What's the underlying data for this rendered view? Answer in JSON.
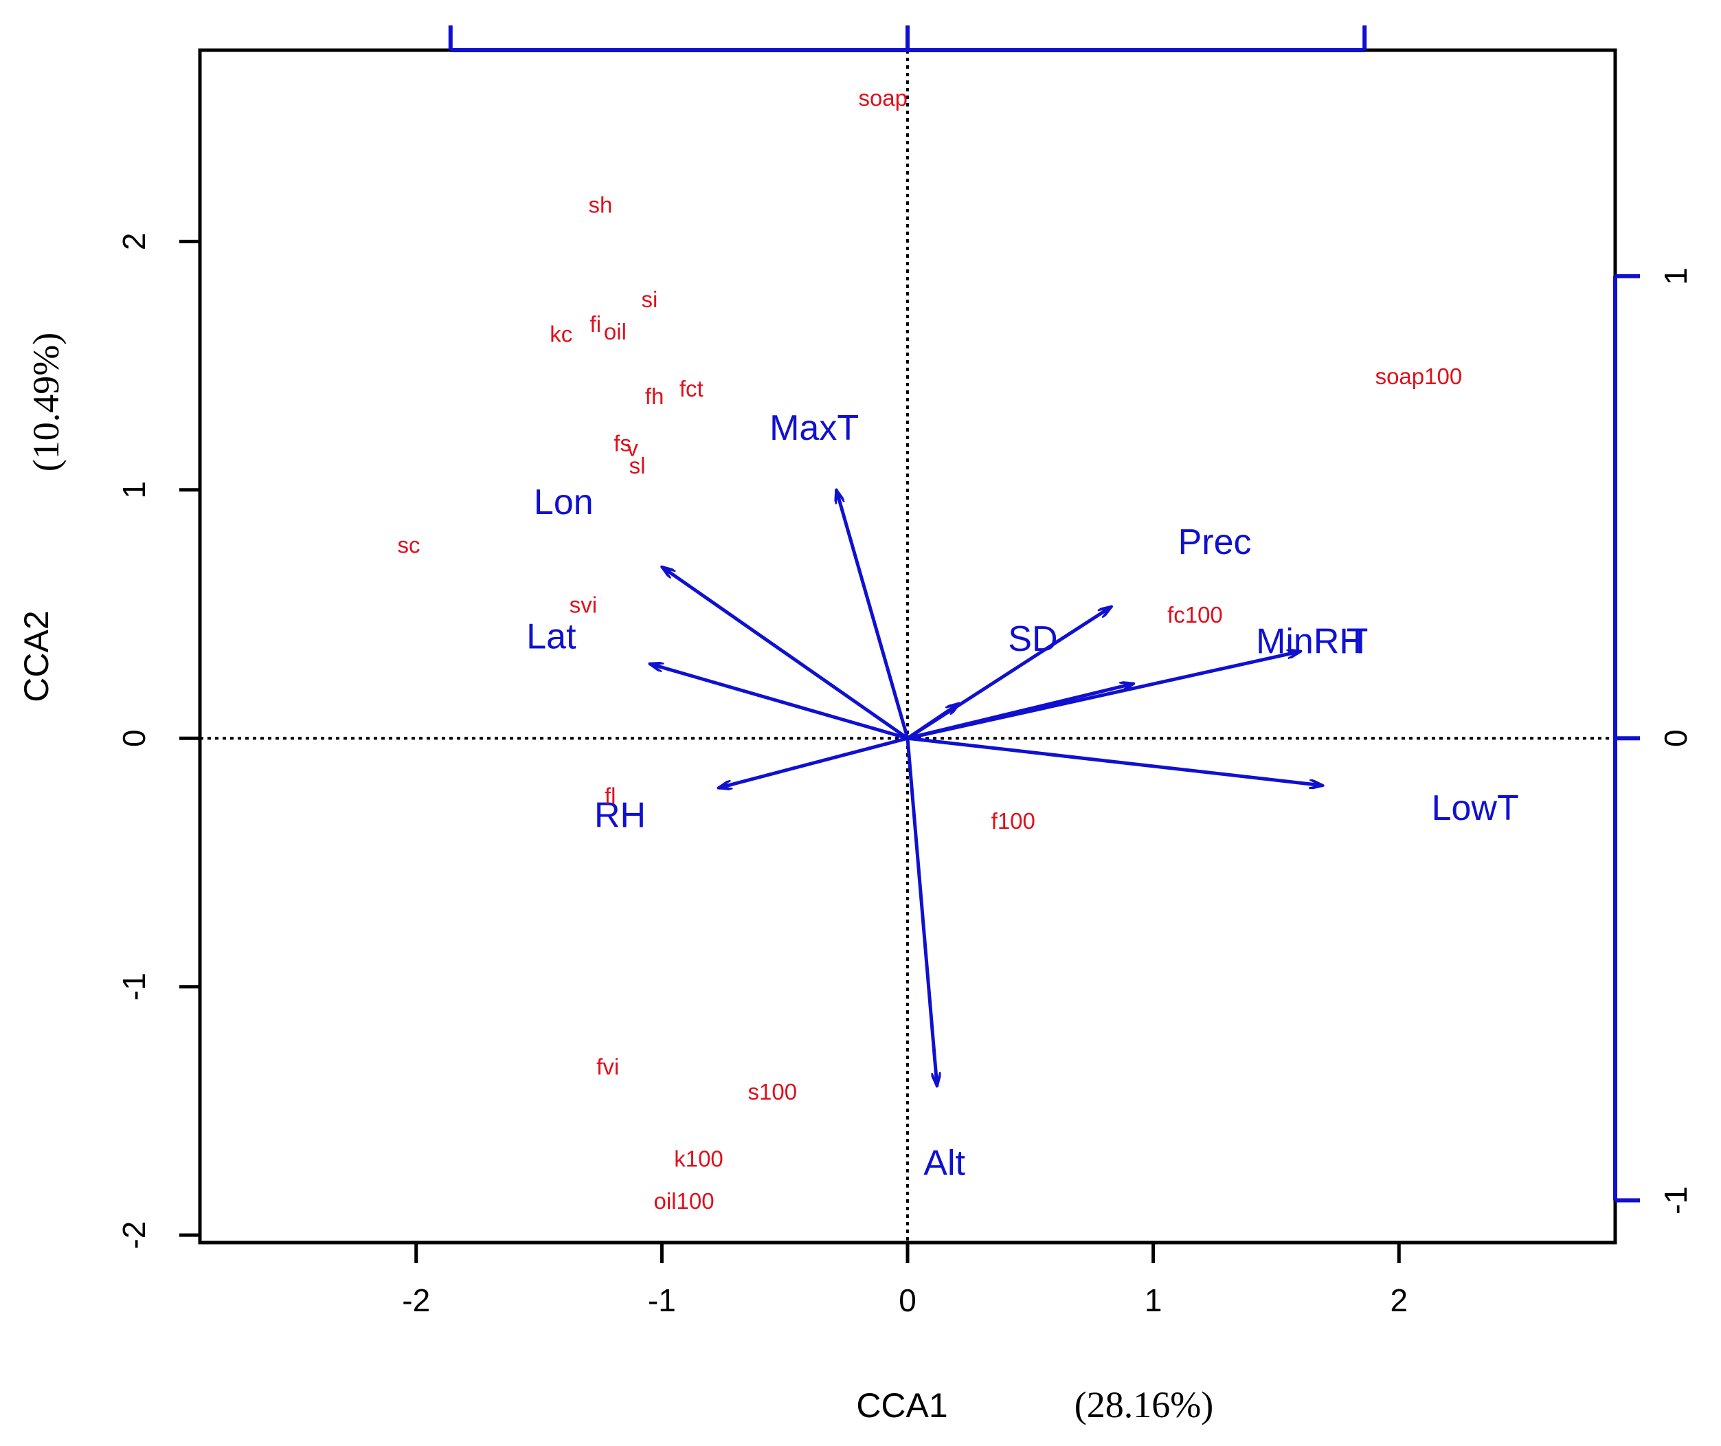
{
  "chart_data": {
    "type": "scatter",
    "subtype": "cca-triplot",
    "xlabel": "CCA1",
    "xlabel_pct": "(28.16%)",
    "ylabel": "CCA2",
    "ylabel_pct": "(10.49%)",
    "xlim": [
      -2.88,
      2.88
    ],
    "ylim": [
      -2.03,
      2.77
    ],
    "x_ticks": [
      -2,
      -1,
      0,
      1,
      2
    ],
    "y_ticks": [
      -2,
      -1,
      0,
      1,
      2
    ],
    "x_tick_labels": [
      "-2",
      "-1",
      "0",
      "1",
      "2"
    ],
    "y_tick_labels": [
      "-2",
      "-1",
      "0",
      "1",
      "2"
    ],
    "reference_lines": {
      "x": 0,
      "y": 0,
      "style": "dotted"
    },
    "secondary_axis": {
      "color": "#1010d0",
      "scale": 1.86,
      "right_ticks": [
        -1,
        0,
        1
      ],
      "right_tick_labels": [
        "-1",
        "0",
        "1"
      ],
      "top_ticks": [
        -1,
        0,
        1
      ]
    },
    "colors": {
      "species": "#e0101c",
      "env": "#1010d0",
      "axes": "#000000"
    },
    "species": [
      {
        "label": "soap",
        "x": -0.1,
        "y": 2.57
      },
      {
        "label": "sh",
        "x": -1.25,
        "y": 2.14
      },
      {
        "label": "si",
        "x": -1.05,
        "y": 1.76
      },
      {
        "label": "kc",
        "x": -1.41,
        "y": 1.62
      },
      {
        "label": "fi",
        "x": -1.27,
        "y": 1.66
      },
      {
        "label": "oil",
        "x": -1.19,
        "y": 1.63
      },
      {
        "label": "fh",
        "x": -1.03,
        "y": 1.37
      },
      {
        "label": "fct",
        "x": -0.88,
        "y": 1.4
      },
      {
        "label": "fs",
        "x": -1.16,
        "y": 1.18
      },
      {
        "label": "v",
        "x": -1.12,
        "y": 1.16
      },
      {
        "label": "sl",
        "x": -1.1,
        "y": 1.09
      },
      {
        "label": "soap100",
        "x": 2.08,
        "y": 1.45
      },
      {
        "label": "sc",
        "x": -2.03,
        "y": 0.77
      },
      {
        "label": "svi",
        "x": -1.32,
        "y": 0.53
      },
      {
        "label": "fc100",
        "x": 1.17,
        "y": 0.49
      },
      {
        "label": "fl",
        "x": -1.21,
        "y": -0.24
      },
      {
        "label": "f100",
        "x": 0.43,
        "y": -0.34
      },
      {
        "label": "fvi",
        "x": -1.22,
        "y": -1.33
      },
      {
        "label": "s100",
        "x": -0.55,
        "y": -1.43
      },
      {
        "label": "k100",
        "x": -0.85,
        "y": -1.7
      },
      {
        "label": "oil100",
        "x": -0.91,
        "y": -1.87
      }
    ],
    "env_vectors": [
      {
        "label": "MaxT",
        "x": -0.29,
        "y": 1.0,
        "label_x": -0.38,
        "label_y": 1.24
      },
      {
        "label": "Lon",
        "x": -1.0,
        "y": 0.69,
        "label_x": -1.4,
        "label_y": 0.94
      },
      {
        "label": "Lat",
        "x": -1.05,
        "y": 0.3,
        "label_x": -1.45,
        "label_y": 0.4
      },
      {
        "label": "RH",
        "x": -0.77,
        "y": -0.2,
        "label_x": -1.17,
        "label_y": -0.32
      },
      {
        "label": "Prec",
        "x": 0.83,
        "y": 0.53,
        "label_x": 1.25,
        "label_y": 0.78
      },
      {
        "label": "SD",
        "x": 0.21,
        "y": 0.14,
        "label_x": 0.51,
        "label_y": 0.39
      },
      {
        "label": "MinRH",
        "x": 0.92,
        "y": 0.22,
        "label_x": 1.64,
        "label_y": 0.38
      },
      {
        "label": "T",
        "x": 1.6,
        "y": 0.35,
        "label_x": 1.83,
        "label_y": 0.38
      },
      {
        "label": "LowT",
        "x": 1.69,
        "y": -0.19,
        "label_x": 2.31,
        "label_y": -0.29
      },
      {
        "label": "Alt",
        "x": 0.12,
        "y": -1.4,
        "label_x": 0.15,
        "label_y": -1.72
      }
    ]
  }
}
